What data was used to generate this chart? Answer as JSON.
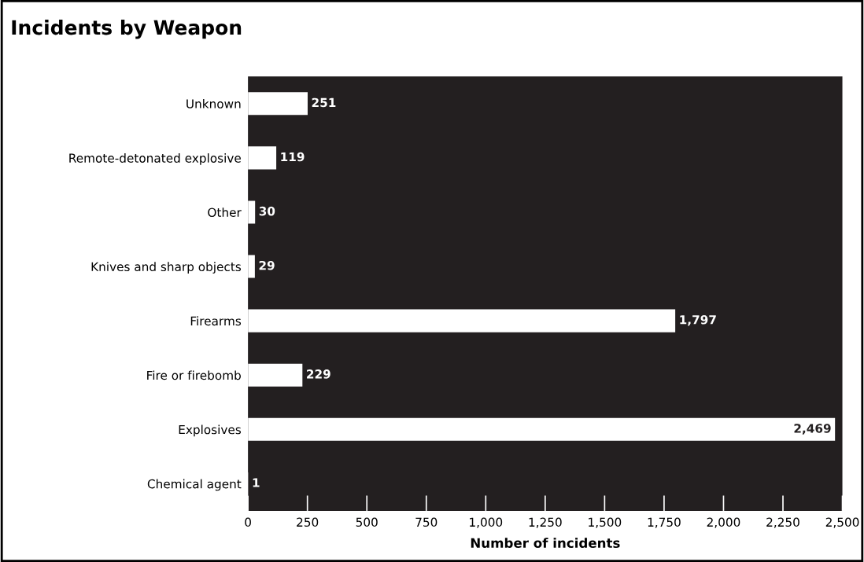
{
  "chart_data": {
    "type": "bar",
    "orientation": "horizontal",
    "title": "Incidents by Weapon",
    "xlabel": "Number of incidents",
    "categories": [
      "Unknown",
      "Remote-detonated explosive",
      "Other",
      "Knives and sharp objects",
      "Firearms",
      "Fire or firebomb",
      "Explosives",
      "Chemical agent"
    ],
    "values": [
      251,
      119,
      30,
      29,
      1797,
      229,
      2469,
      1
    ],
    "value_labels": [
      "251",
      "119",
      "30",
      "29",
      "1,797",
      "229",
      "2,469",
      "1"
    ],
    "color": "#ffffff",
    "xlim": [
      0,
      2500
    ],
    "xticks": [
      0,
      250,
      500,
      750,
      {
        "value": 1000,
        "label": "1,000"
      },
      {
        "value": 1250,
        "label": "1,250"
      },
      {
        "value": 1500,
        "label": "1,500"
      },
      {
        "value": 1750,
        "label": "1,750"
      },
      {
        "value": 2000,
        "label": "2,000"
      },
      {
        "value": 2250,
        "label": "2,250"
      },
      {
        "value": 2500,
        "label": "2,500"
      }
    ],
    "grid": false,
    "legend": false
  }
}
